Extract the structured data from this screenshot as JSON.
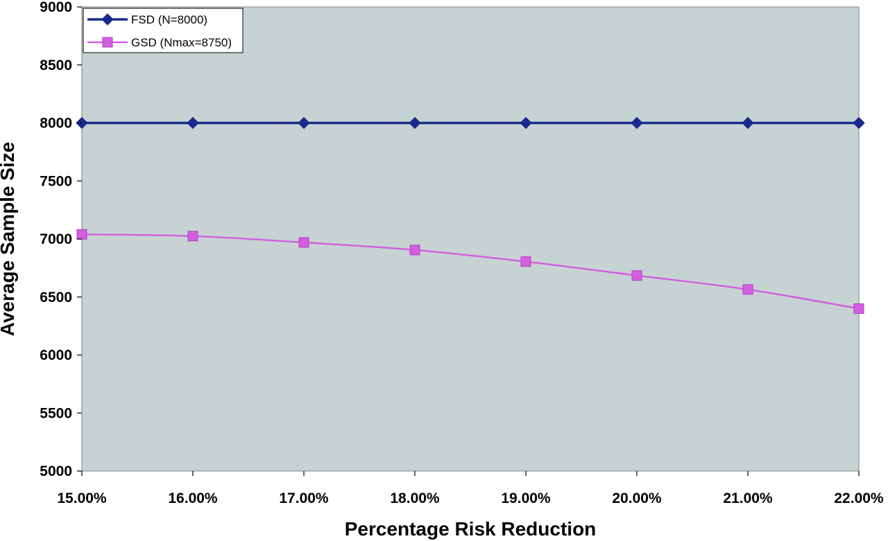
{
  "chart_data": {
    "type": "line",
    "title": "",
    "xlabel": "Percentage Risk Reduction",
    "ylabel": "Average Sample Size",
    "categories": [
      "15.00%",
      "16.00%",
      "17.00%",
      "18.00%",
      "19.00%",
      "20.00%",
      "21.00%",
      "22.00%"
    ],
    "ylim": [
      5000,
      9000
    ],
    "yticks": [
      5000,
      5500,
      6000,
      6500,
      7000,
      7500,
      8000,
      8500,
      9000
    ],
    "grid": false,
    "legend_position": "top-left",
    "plot_background": "#c7d3d3",
    "series": [
      {
        "name": "FSD (N=8000)",
        "color": "#1a2a8c",
        "marker": "diamond",
        "values": [
          8000,
          8000,
          8000,
          8000,
          8000,
          8000,
          8000,
          8000
        ]
      },
      {
        "name": "GSD (Nmax=8750)",
        "color": "#d35fe0",
        "marker": "square",
        "values": [
          7040,
          7025,
          6970,
          6905,
          6805,
          6685,
          6565,
          6400
        ]
      }
    ]
  }
}
